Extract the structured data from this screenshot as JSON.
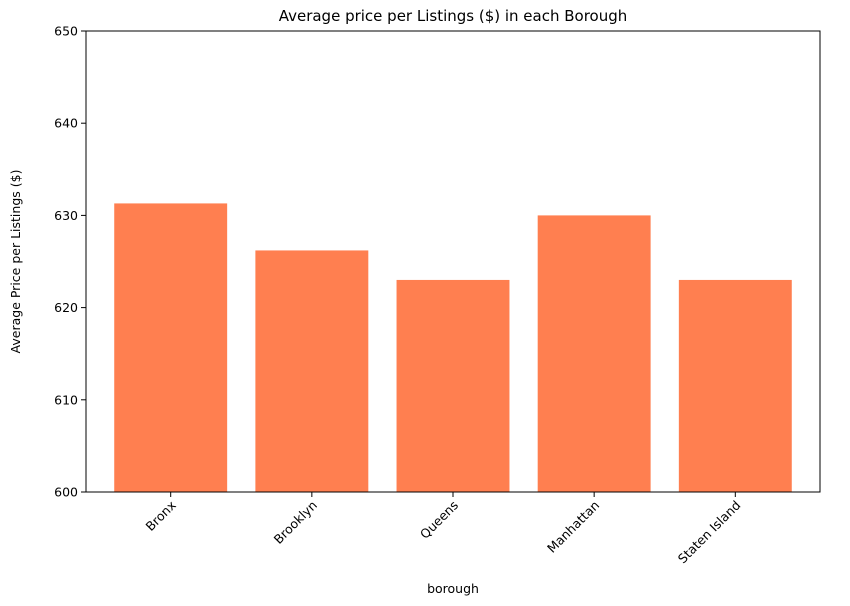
{
  "chart_data": {
    "type": "bar",
    "title": "Average price per Listings ($) in each Borough",
    "xlabel": "borough",
    "ylabel": "Average Price per Listings ($)",
    "categories": [
      "Bronx",
      "Brooklyn",
      "Queens",
      "Manhattan",
      "Staten Island"
    ],
    "values": [
      631.3,
      626.2,
      623.0,
      630.0,
      623.0
    ],
    "ylim": [
      600,
      650
    ],
    "yticks": [
      "600",
      "610",
      "620",
      "630",
      "640",
      "650"
    ],
    "grid": false,
    "legend": "none",
    "bar_color": "#ff7f50",
    "xtick_rotation": 45
  }
}
